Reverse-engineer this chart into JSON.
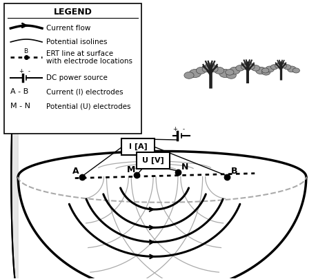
{
  "background_color": "#ffffff",
  "figure_width": 4.74,
  "figure_height": 4.05,
  "dpi": 100,
  "colors": {
    "black": "#000000",
    "light_gray": "#aaaaaa",
    "medium_gray": "#888888",
    "dark_gray": "#333333"
  },
  "legend_title": "LEGEND",
  "legend_items": [
    "Current flow",
    "Potential isolines",
    "ERT line at surface\nwith electrode locations",
    "DC power source",
    "A - B     Current (I) electrodes",
    "M - N   Potential (U) electrodes"
  ]
}
